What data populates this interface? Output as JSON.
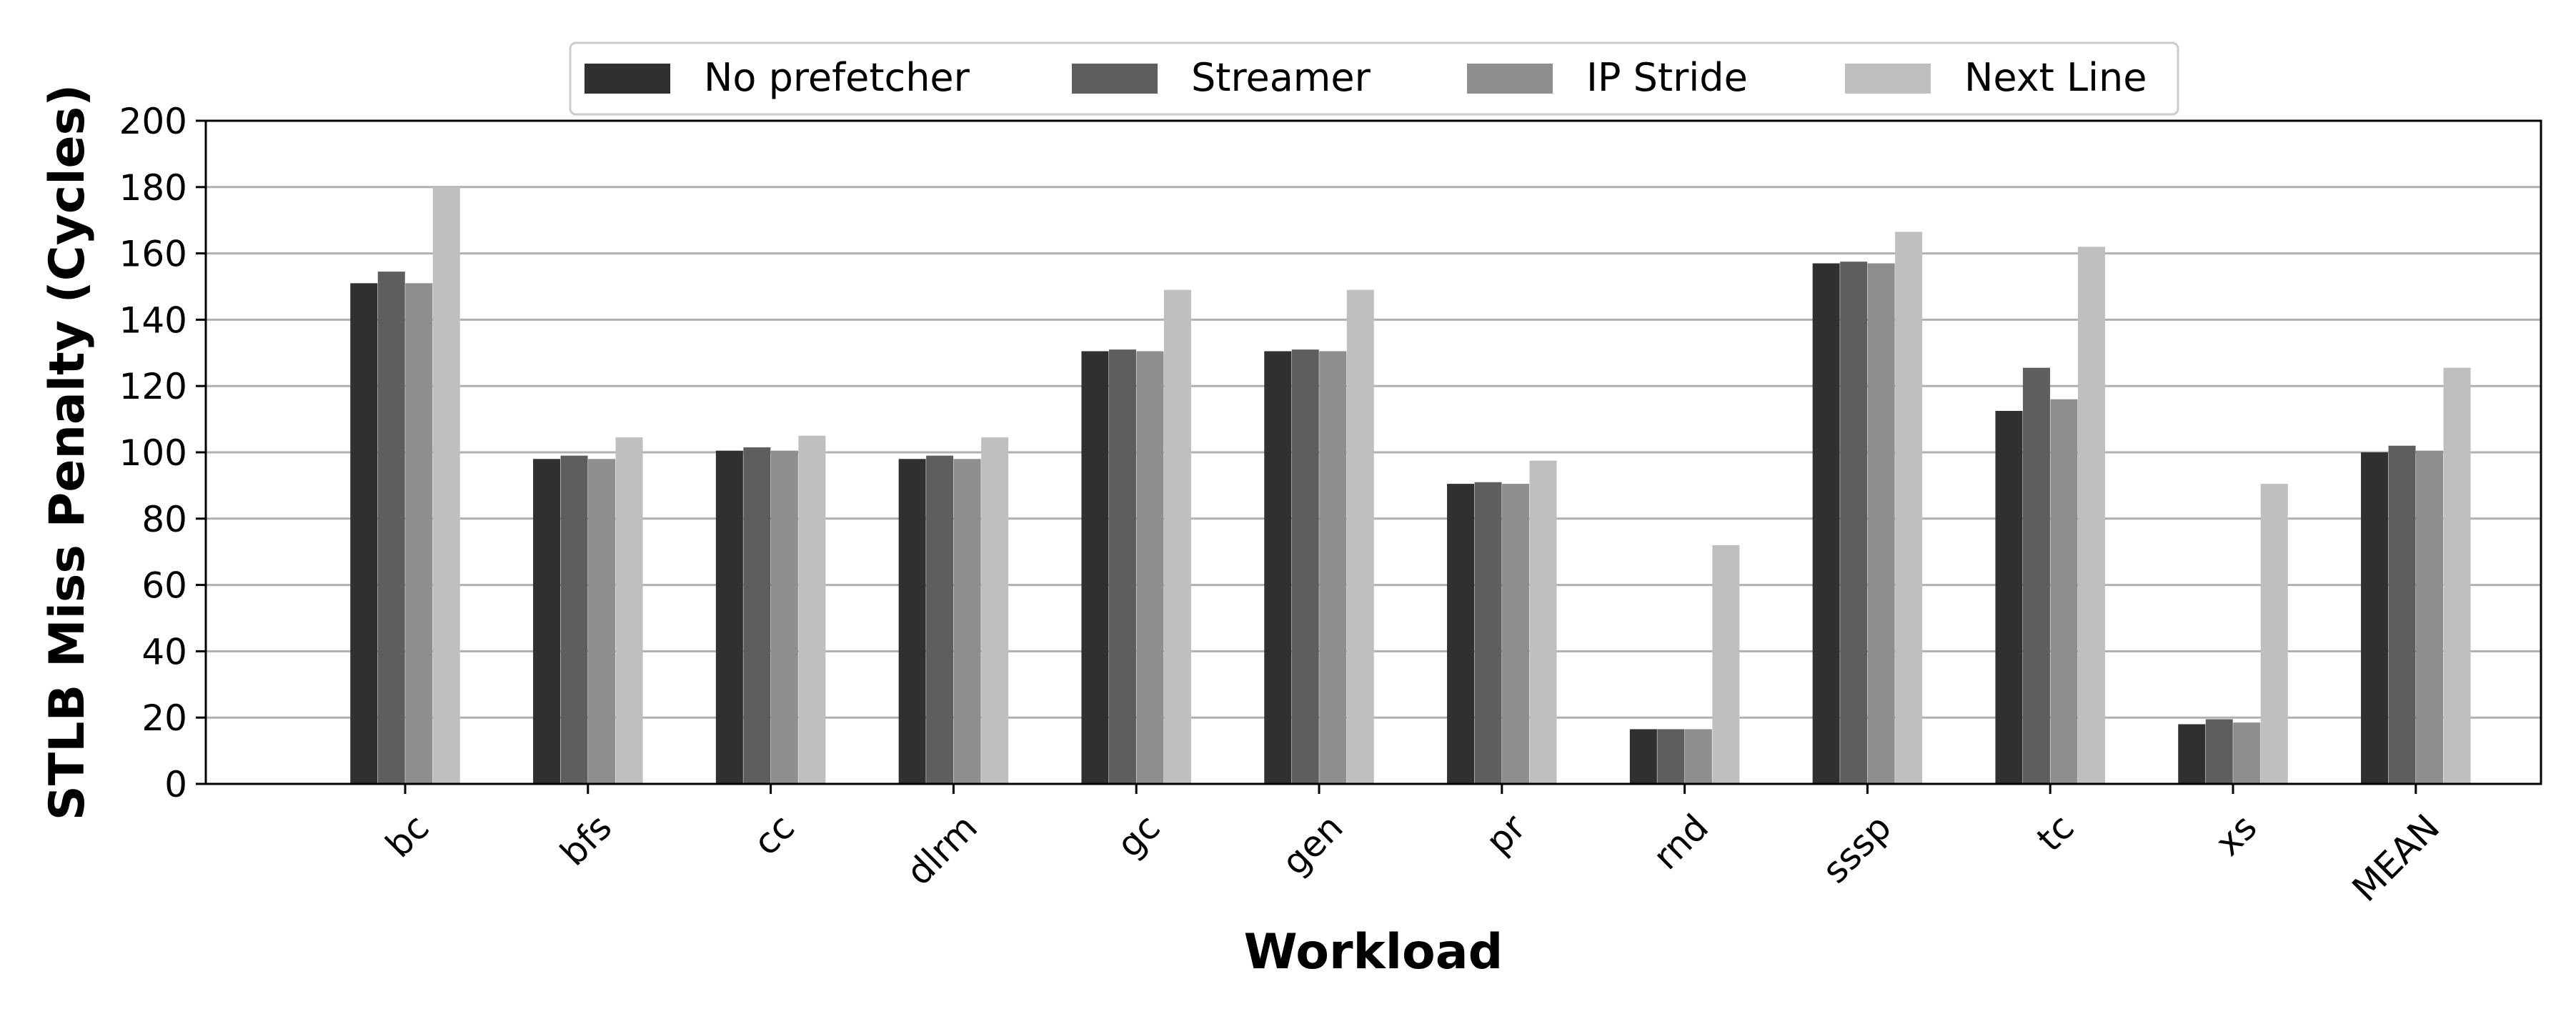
{
  "chart_data": {
    "type": "bar",
    "title": "",
    "xlabel": "Workload",
    "ylabel": "STLB Miss Penalty (Cycles)",
    "ylim": [
      0,
      200
    ],
    "yticks": [
      0,
      20,
      40,
      60,
      80,
      100,
      120,
      140,
      160,
      180,
      200
    ],
    "grid": "horizontal",
    "legend_position": "top-center",
    "categories": [
      "bc",
      "bfs",
      "cc",
      "dlrm",
      "gc",
      "gen",
      "pr",
      "rnd",
      "sssp",
      "tc",
      "xs",
      "MEAN"
    ],
    "series": [
      {
        "name": "No prefetcher",
        "color": "#303030",
        "values": [
          151,
          98,
          100.5,
          98,
          130.5,
          130.5,
          90.5,
          16.5,
          157,
          112.5,
          18,
          100
        ]
      },
      {
        "name": "Streamer",
        "color": "#5e5e5e",
        "values": [
          154.5,
          99,
          101.5,
          99,
          131,
          131,
          91,
          16.5,
          157.5,
          125.5,
          19.5,
          102
        ]
      },
      {
        "name": "IP Stride",
        "color": "#8e8e8e",
        "values": [
          151,
          98,
          100.5,
          98,
          130.5,
          130.5,
          90.5,
          16.5,
          157,
          116,
          18.5,
          100.5
        ]
      },
      {
        "name": "Next Line",
        "color": "#bfbfbf",
        "values": [
          180,
          104.5,
          105,
          104.5,
          149,
          149,
          97.5,
          72,
          166.5,
          162,
          90.5,
          125.5
        ]
      }
    ]
  }
}
